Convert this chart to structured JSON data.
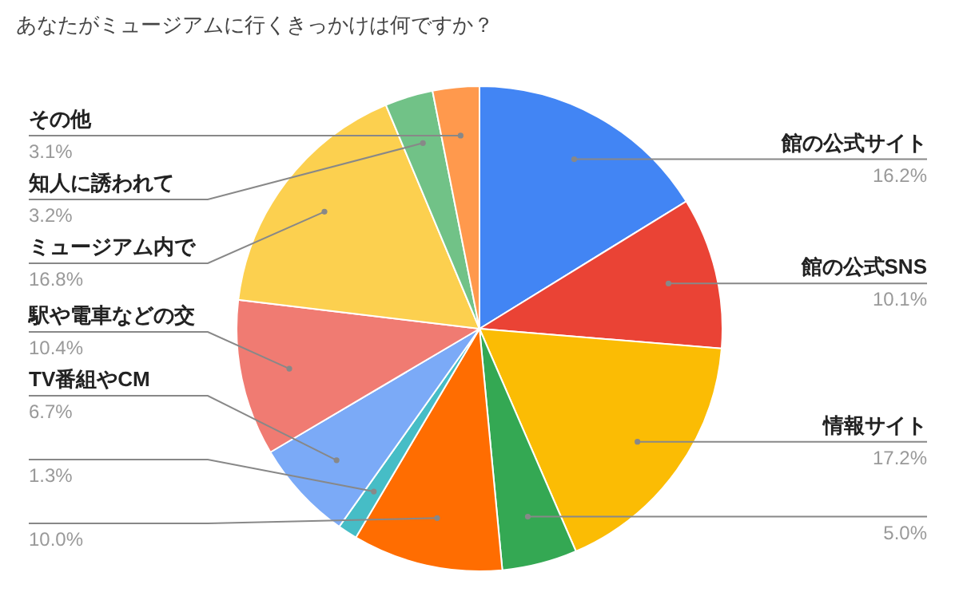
{
  "chart_data": {
    "type": "pie",
    "title": "あなたがミュージアムに行くきっかけは何ですか？",
    "categories": [
      "館の公式サイト",
      "館の公式SNS",
      "情報サイト",
      null,
      null,
      null,
      "TV番組やCM",
      "駅や電車などの交",
      "ミュージアム内で",
      "知人に誘われて",
      "その他"
    ],
    "values": [
      16.2,
      10.1,
      17.2,
      5.0,
      10.0,
      1.3,
      6.7,
      10.4,
      16.8,
      3.2,
      3.1
    ],
    "value_labels": [
      "16.2%",
      "10.1%",
      "17.2%",
      "5.0%",
      "10.0%",
      "1.3%",
      "6.7%",
      "10.4%",
      "16.8%",
      "3.2%",
      "3.1%"
    ],
    "colors": [
      "#4285f4",
      "#ea4335",
      "#fbbc04",
      "#34a853",
      "#ff6d01",
      "#46bdc6",
      "#7baaf7",
      "#f07b72",
      "#fcd04f",
      "#71c287",
      "#ff994d"
    ]
  }
}
